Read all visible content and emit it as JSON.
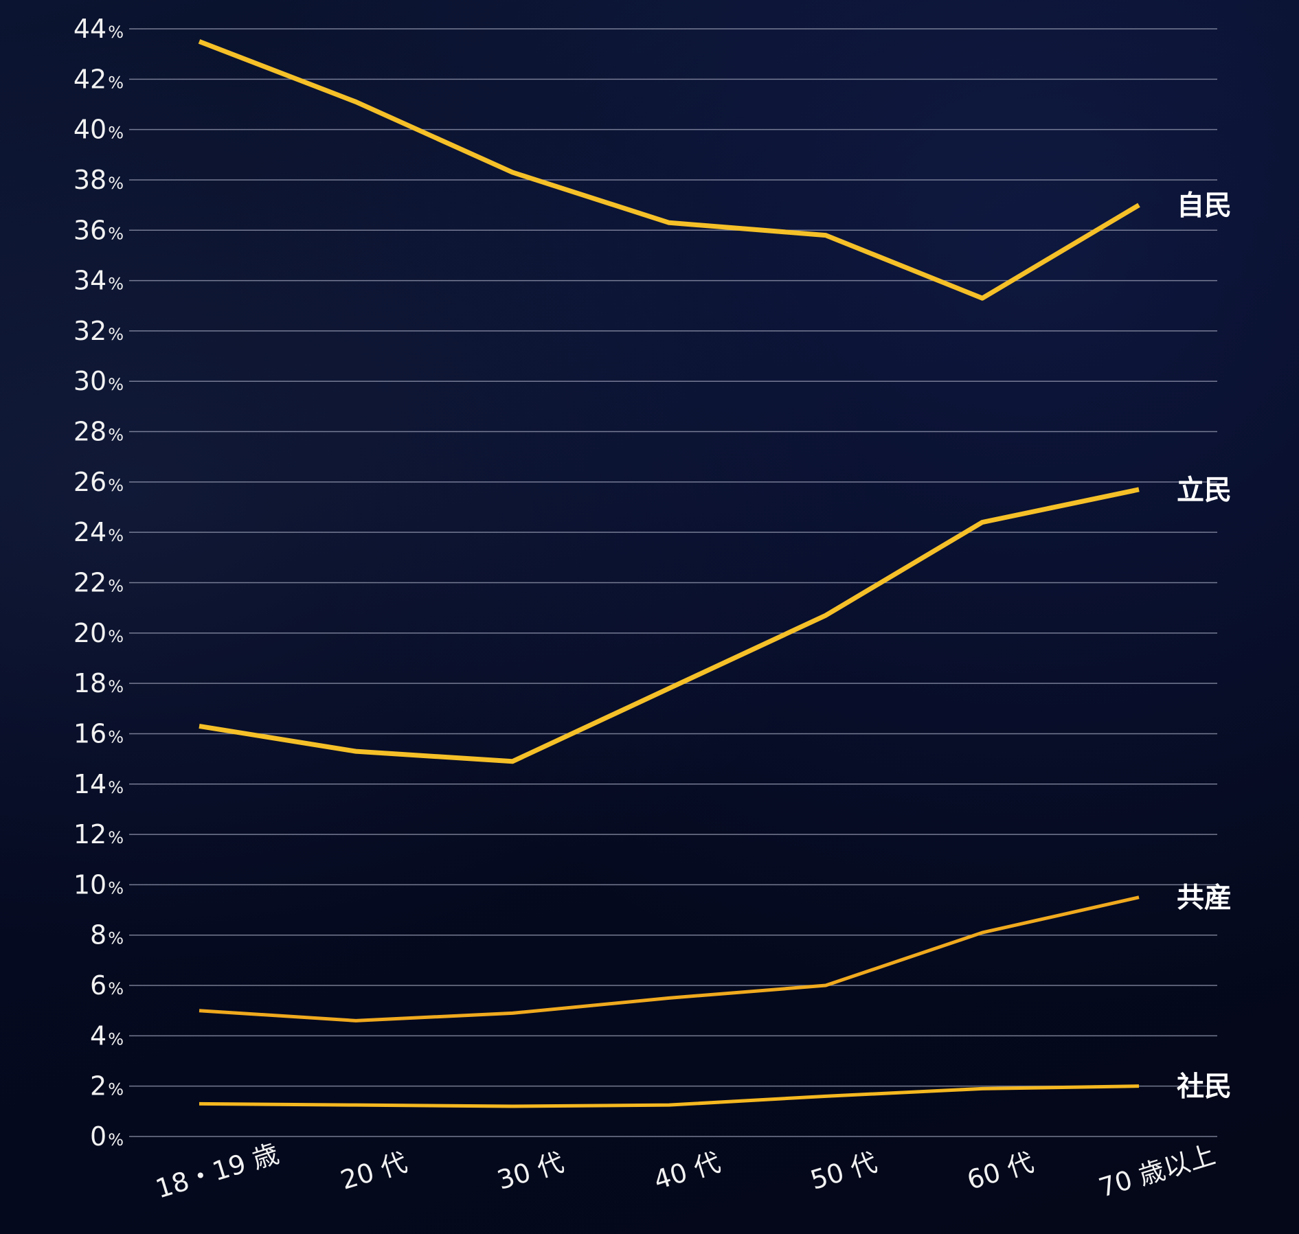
{
  "chart_data": {
    "type": "line",
    "title": "",
    "xlabel": "",
    "ylabel": "",
    "categories": [
      "18・19 歳",
      "20 代",
      "30 代",
      "40 代",
      "50 代",
      "60 代",
      "70 歳以上"
    ],
    "ylim": [
      0,
      44
    ],
    "y_ticks": [
      {
        "value": 44,
        "label": "44"
      },
      {
        "value": 42,
        "label": "42"
      },
      {
        "value": 40,
        "label": "40"
      },
      {
        "value": 38,
        "label": "38"
      },
      {
        "value": 36,
        "label": "36"
      },
      {
        "value": 34,
        "label": "34"
      },
      {
        "value": 32,
        "label": "32"
      },
      {
        "value": 30,
        "label": "30"
      },
      {
        "value": 28,
        "label": "28"
      },
      {
        "value": 26,
        "label": "26"
      },
      {
        "value": 24,
        "label": "24"
      },
      {
        "value": 22,
        "label": "22"
      },
      {
        "value": 20,
        "label": "20"
      },
      {
        "value": 18,
        "label": "18"
      },
      {
        "value": 16,
        "label": "16"
      },
      {
        "value": 14,
        "label": "14"
      },
      {
        "value": 12,
        "label": "12"
      },
      {
        "value": 10,
        "label": "10"
      },
      {
        "value": 8,
        "label": "8"
      },
      {
        "value": 6,
        "label": "6"
      },
      {
        "value": 4,
        "label": "4"
      },
      {
        "value": 2,
        "label": "2"
      },
      {
        "value": 0,
        "label": "0"
      }
    ],
    "y_unit": "%",
    "grid": true,
    "legend": "none",
    "series": [
      {
        "name": "自民",
        "values": [
          43.5,
          41.1,
          38.3,
          36.3,
          35.8,
          33.3,
          37.0
        ],
        "color": "#f5c028",
        "width": 7
      },
      {
        "name": "立民",
        "values": [
          16.3,
          15.3,
          14.9,
          17.8,
          20.7,
          24.4,
          25.7
        ],
        "color": "#f5c028",
        "width": 7
      },
      {
        "name": "共産",
        "values": [
          5.0,
          4.6,
          4.9,
          5.5,
          6.0,
          8.1,
          9.5
        ],
        "color": "#f0aa1e",
        "width": 5
      },
      {
        "name": "社民",
        "values": [
          1.3,
          1.25,
          1.2,
          1.25,
          1.6,
          1.9,
          2.0
        ],
        "color": "#f5b820",
        "width": 5
      }
    ]
  }
}
